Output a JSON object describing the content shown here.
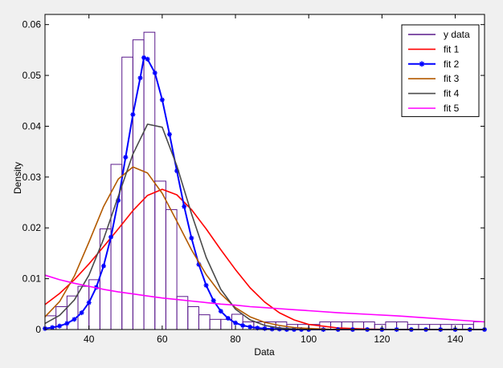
{
  "chart_data": {
    "type": "line",
    "title": "",
    "xlabel": "Data",
    "ylabel": "Density",
    "xlim": [
      28,
      148
    ],
    "ylim": [
      0,
      0.062
    ],
    "grid": false,
    "legend_position": "top-right",
    "x_ticks": [
      40,
      60,
      80,
      100,
      120,
      140
    ],
    "x_tick_labels": [
      "40",
      "60",
      "80",
      "100",
      "120",
      "140"
    ],
    "y_ticks": [
      0,
      0.01,
      0.02,
      0.03,
      0.04,
      0.05,
      0.06
    ],
    "y_tick_labels": [
      "0",
      "0.01",
      "0.02",
      "0.03",
      "0.04",
      "0.05",
      "0.06"
    ],
    "histogram": {
      "name": "y data",
      "color": "#5a1a8c",
      "bin_edges": [
        28,
        31,
        34,
        37,
        40,
        43,
        46,
        49,
        52,
        55,
        58,
        61,
        64,
        67,
        70,
        73,
        76,
        79,
        82,
        85,
        88,
        91,
        94,
        97,
        100,
        103,
        106,
        109,
        112,
        115,
        118,
        121,
        124,
        127,
        130,
        133,
        136,
        139,
        142,
        145,
        148
      ],
      "density": [
        0.0027,
        0.0045,
        0.0066,
        0.0085,
        0.0098,
        0.0198,
        0.0325,
        0.0536,
        0.057,
        0.0585,
        0.0292,
        0.0236,
        0.0065,
        0.0045,
        0.0029,
        0.002,
        0.002,
        0.003,
        0.0015,
        0.0015,
        0.0015,
        0.0015,
        0.001,
        0.001,
        0.001,
        0.0015,
        0.0015,
        0.0015,
        0.0015,
        0.0015,
        0.001,
        0.0015,
        0.0015,
        0.001,
        0.001,
        0.001,
        0.001,
        0.001,
        0.001,
        0.0015
      ]
    },
    "series": [
      {
        "name": "fit 1",
        "color": "#ff0000",
        "marker": "none",
        "x": [
          28,
          32,
          36,
          40,
          44,
          48,
          52,
          56,
          60,
          64,
          68,
          72,
          76,
          80,
          84,
          88,
          92,
          96,
          100,
          108,
          116,
          124,
          132,
          140,
          148
        ],
        "y": [
          0.0049,
          0.0071,
          0.0098,
          0.0129,
          0.0163,
          0.0198,
          0.0234,
          0.0264,
          0.0276,
          0.0265,
          0.0236,
          0.0198,
          0.0157,
          0.0118,
          0.0082,
          0.0054,
          0.0033,
          0.0019,
          0.001,
          0.0003,
          0.0001,
          0.0,
          0.0,
          0.0,
          0.0
        ]
      },
      {
        "name": "fit 2",
        "color": "#0000ff",
        "marker": "star",
        "x": [
          28,
          30,
          32,
          34,
          36,
          38,
          40,
          42,
          44,
          46,
          48,
          50,
          52,
          54,
          55,
          56,
          58,
          60,
          62,
          64,
          66,
          68,
          70,
          72,
          74,
          76,
          78,
          80,
          82,
          84,
          86,
          88,
          90,
          92,
          94,
          96,
          98,
          100,
          104,
          108,
          112,
          116,
          120,
          124,
          128,
          132,
          136,
          140,
          144,
          148
        ],
        "y": [
          0.0002,
          0.0004,
          0.0007,
          0.0012,
          0.002,
          0.0033,
          0.0053,
          0.0083,
          0.0125,
          0.0182,
          0.0254,
          0.0339,
          0.0423,
          0.0495,
          0.0535,
          0.0532,
          0.0505,
          0.0452,
          0.0384,
          0.0312,
          0.0242,
          0.018,
          0.0128,
          0.0087,
          0.0057,
          0.0036,
          0.0022,
          0.0013,
          0.0008,
          0.0005,
          0.0003,
          0.0002,
          0.0001,
          0.0001,
          0.0,
          0.0,
          0.0,
          0.0,
          0.0,
          0.0,
          0.0,
          0.0,
          0.0,
          0.0,
          0.0,
          0.0,
          0.0,
          0.0,
          0.0,
          0.0
        ]
      },
      {
        "name": "fit 3",
        "color": "#b35a00",
        "marker": "none",
        "x": [
          28,
          32,
          36,
          40,
          44,
          48,
          52,
          56,
          60,
          64,
          68,
          72,
          76,
          80,
          84,
          88,
          92,
          96,
          100,
          108,
          116,
          124,
          132,
          140,
          148
        ],
        "y": [
          0.0025,
          0.0055,
          0.0105,
          0.0172,
          0.0242,
          0.0296,
          0.032,
          0.0308,
          0.0268,
          0.0213,
          0.0157,
          0.0108,
          0.007,
          0.0043,
          0.0025,
          0.0014,
          0.0008,
          0.0004,
          0.0002,
          0.0,
          0.0,
          0.0,
          0.0,
          0.0,
          0.0
        ]
      },
      {
        "name": "fit 4",
        "color": "#4a4a4a",
        "marker": "none",
        "x": [
          28,
          32,
          36,
          40,
          44,
          48,
          52,
          56,
          60,
          64,
          68,
          72,
          76,
          80,
          84,
          88,
          92,
          96,
          100,
          108,
          116,
          124,
          132,
          140,
          148
        ],
        "y": [
          0.0012,
          0.0028,
          0.0058,
          0.0107,
          0.0178,
          0.0262,
          0.0345,
          0.0404,
          0.0398,
          0.0322,
          0.0228,
          0.0142,
          0.0079,
          0.004,
          0.0019,
          0.0008,
          0.0003,
          0.0001,
          0.0,
          0.0,
          0.0,
          0.0,
          0.0,
          0.0,
          0.0
        ]
      },
      {
        "name": "fit 5",
        "color": "#ff00ff",
        "marker": "none",
        "x": [
          28,
          32,
          36,
          40,
          44,
          48,
          52,
          56,
          60,
          64,
          68,
          72,
          76,
          80,
          84,
          88,
          92,
          96,
          100,
          108,
          116,
          124,
          132,
          140,
          148
        ],
        "y": [
          0.0107,
          0.0098,
          0.0091,
          0.0085,
          0.0079,
          0.0074,
          0.007,
          0.0066,
          0.0062,
          0.0059,
          0.0056,
          0.0053,
          0.005,
          0.0048,
          0.0045,
          0.0043,
          0.0041,
          0.0039,
          0.0037,
          0.0033,
          0.003,
          0.0027,
          0.0023,
          0.0019,
          0.0015
        ]
      }
    ]
  }
}
